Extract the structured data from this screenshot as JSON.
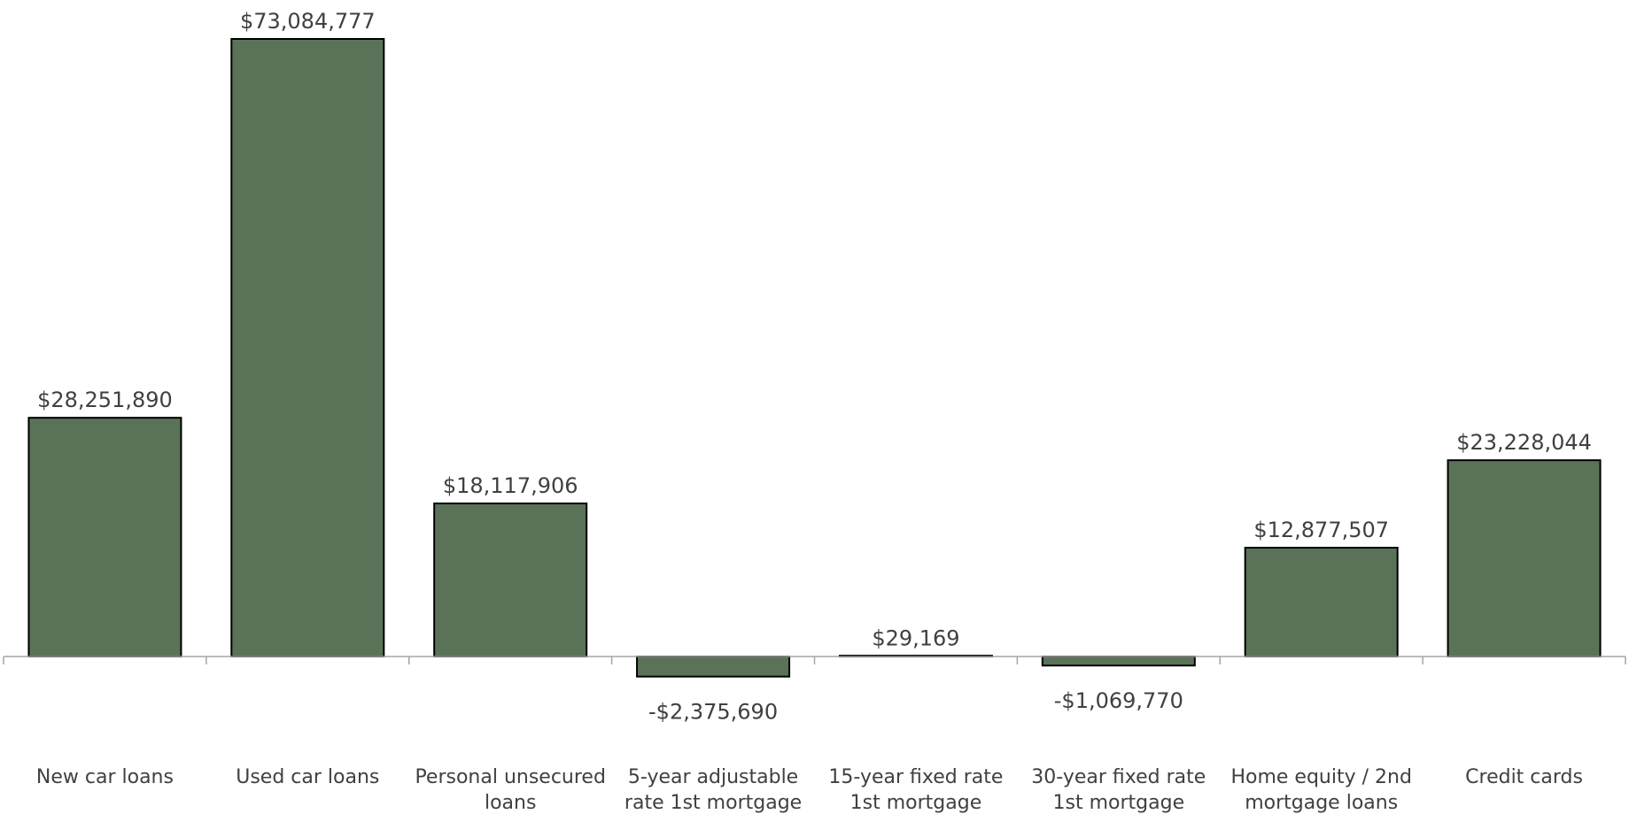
{
  "chart_data": {
    "type": "bar",
    "categories": [
      [
        "New car loans"
      ],
      [
        "Used car loans"
      ],
      [
        "Personal unsecured",
        "loans"
      ],
      [
        "5-year adjustable",
        "rate 1st mortgage"
      ],
      [
        "15-year fixed rate",
        "1st mortgage"
      ],
      [
        "30-year fixed rate",
        "1st mortgage"
      ],
      [
        "Home equity / 2nd",
        "mortgage loans"
      ],
      [
        "Credit cards"
      ]
    ],
    "values": [
      28251890,
      73084777,
      18117906,
      -2375690,
      29169,
      -1069770,
      12877507,
      23228044
    ],
    "value_labels": [
      "$28,251,890",
      "$73,084,777",
      "$18,117,906",
      "-$2,375,690",
      "$29,169",
      "-$1,069,770",
      "$12,877,507",
      "$23,228,044"
    ],
    "title": "",
    "xlabel": "",
    "ylabel": "",
    "grid": false,
    "legend": "none",
    "bar_color": "#5a7358",
    "bar_outline": "#000000",
    "axis_color": "#a6a6a6",
    "text_color": "#404040"
  }
}
